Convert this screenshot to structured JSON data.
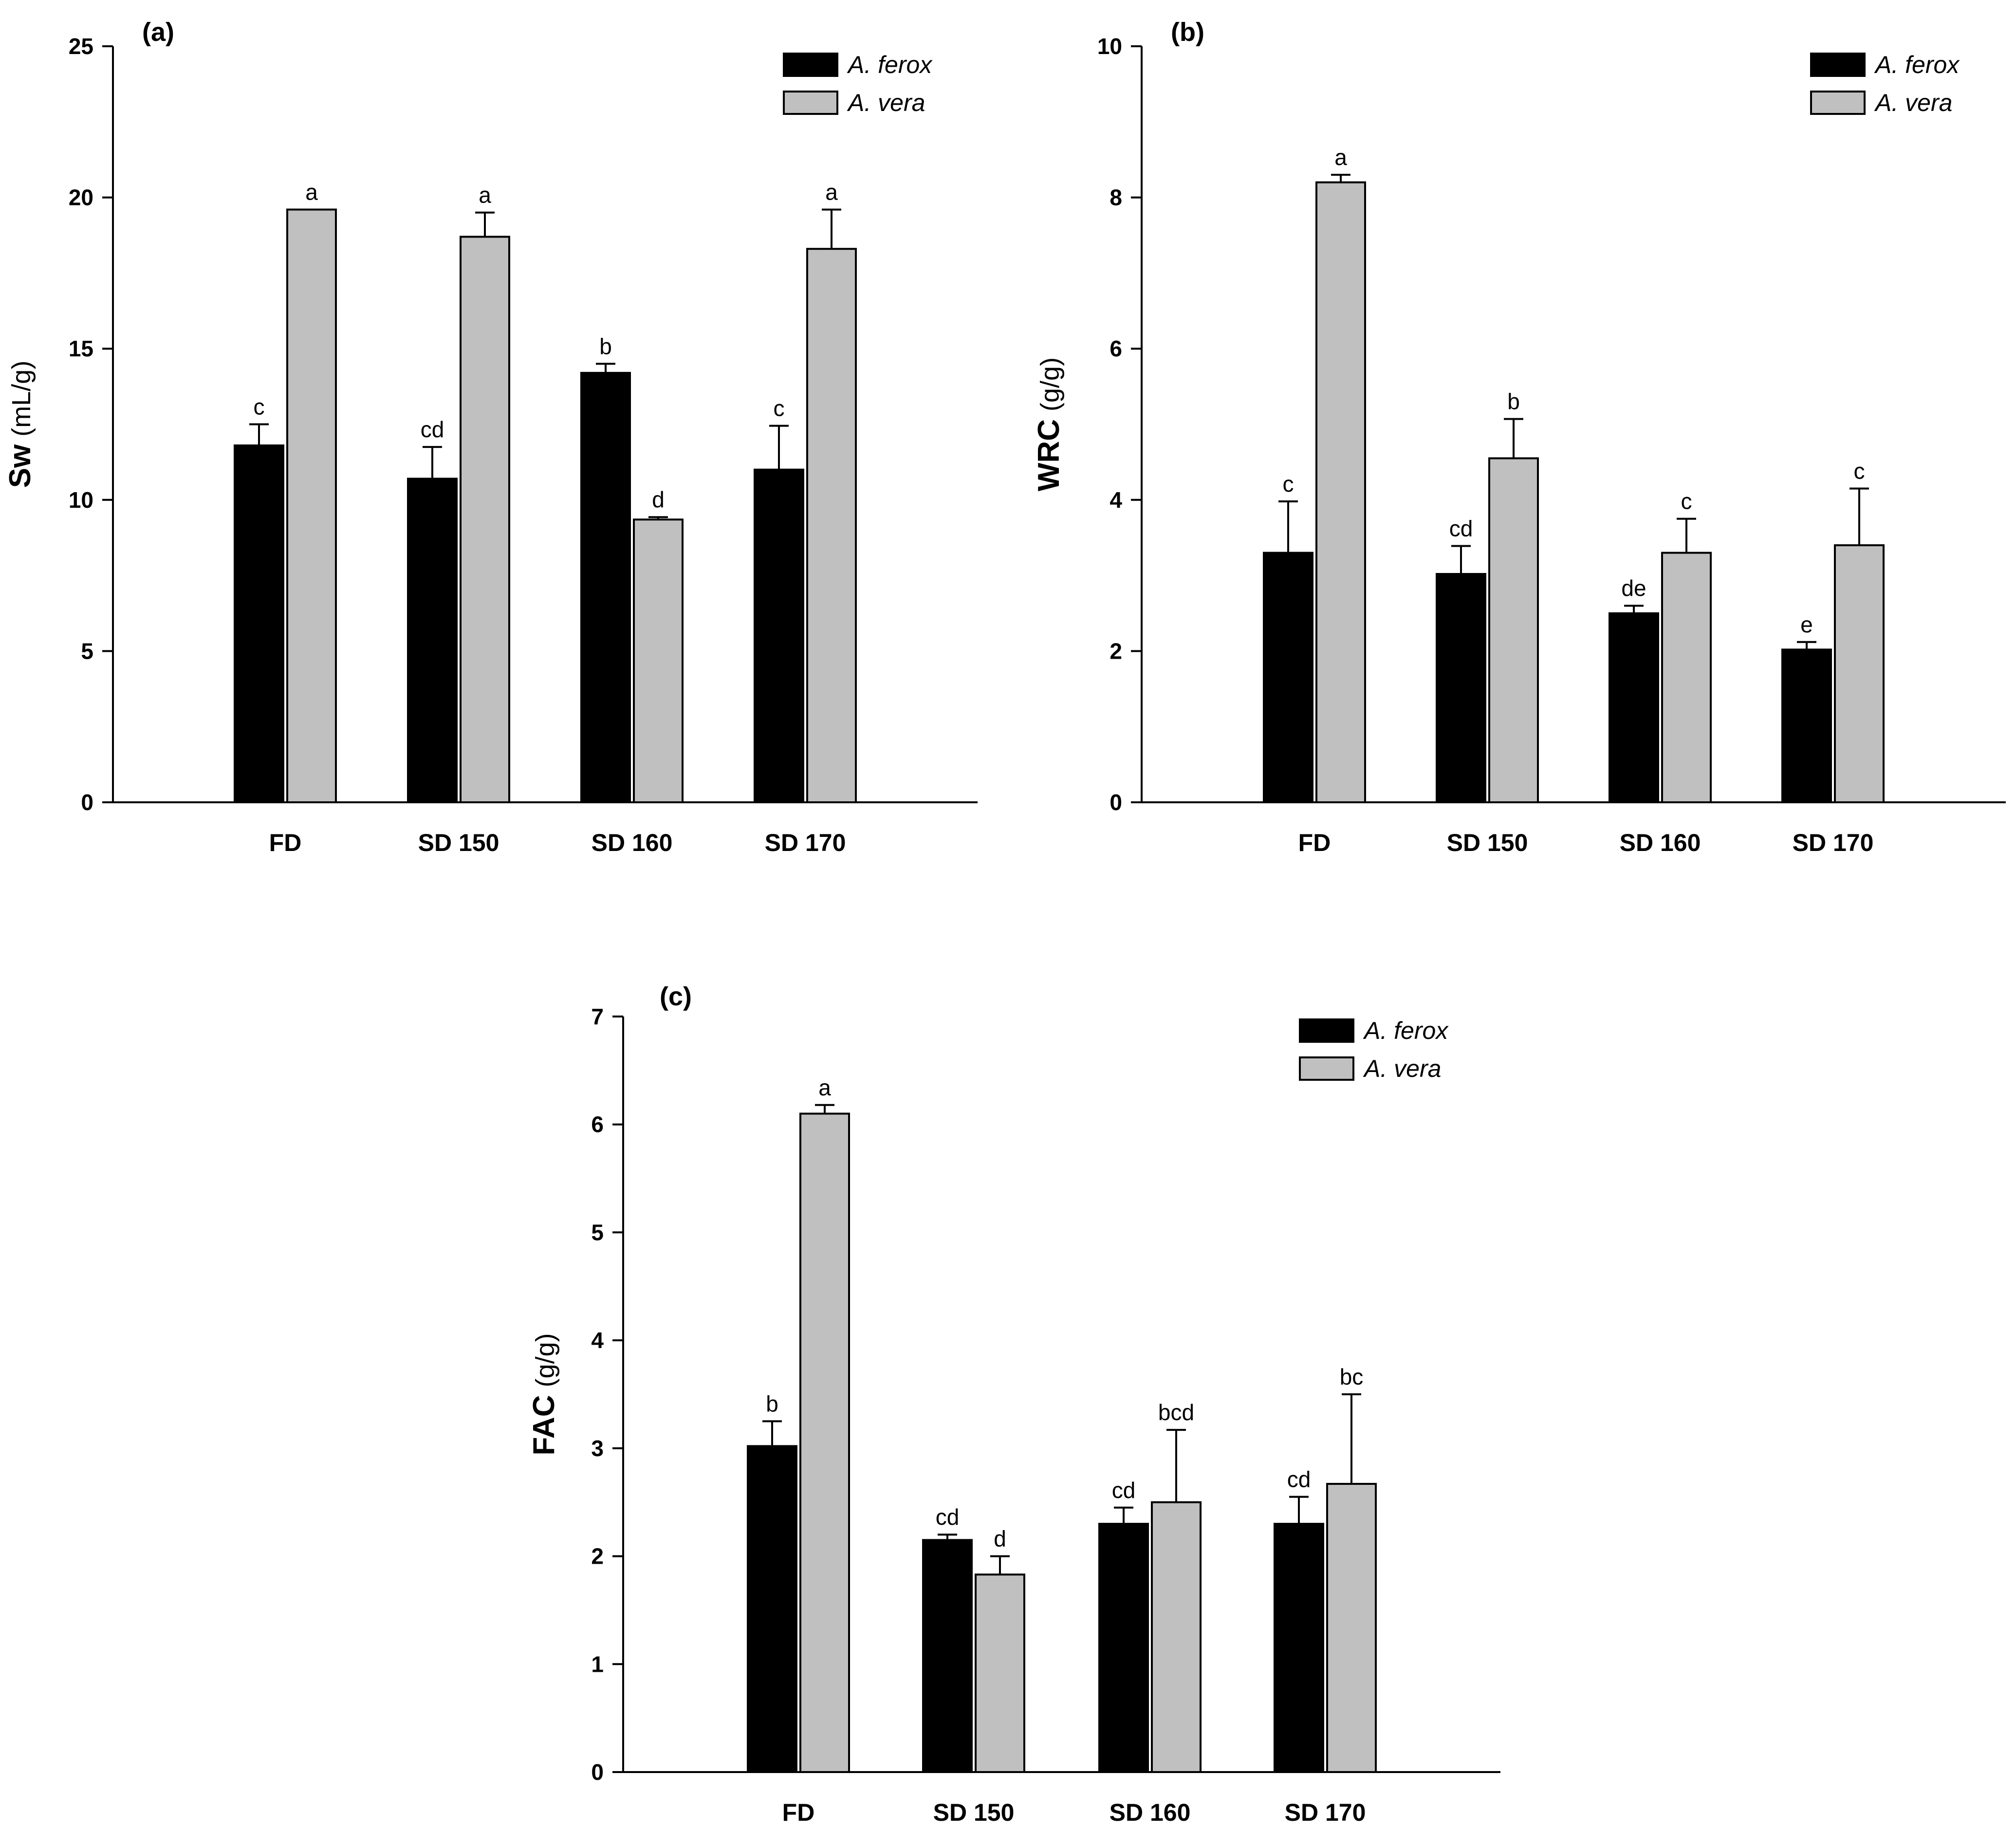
{
  "series_names": [
    "A. ferox",
    "A. vera"
  ],
  "colors": {
    "A. ferox": "#000000",
    "A. vera": "#c0c0c0",
    "axis": "#000000"
  },
  "chart_data": [
    {
      "type": "bar",
      "panel_label": "(a)",
      "ylabel_main": "Sw",
      "ylabel_unit": "(mL/g)",
      "xlabel": "",
      "categories": [
        "FD",
        "SD 150",
        "SD 160",
        "SD 170"
      ],
      "ylim": [
        0,
        25
      ],
      "yticks": [
        0,
        5,
        10,
        15,
        20,
        25
      ],
      "legend_position": "top-right",
      "grid": false,
      "series": [
        {
          "name": "A. ferox",
          "values": [
            11.8,
            10.7,
            14.2,
            11.0
          ],
          "errors": [
            0.7,
            1.05,
            0.3,
            1.45
          ],
          "letters": [
            "c",
            "cd",
            "b",
            "c"
          ]
        },
        {
          "name": "A. vera",
          "values": [
            19.6,
            18.7,
            9.35,
            18.3
          ],
          "errors": [
            0.0,
            0.8,
            0.08,
            1.3
          ],
          "letters": [
            "a",
            "a",
            "d",
            "a"
          ]
        }
      ]
    },
    {
      "type": "bar",
      "panel_label": "(b)",
      "ylabel_main": "WRC",
      "ylabel_unit": "(g/g)",
      "xlabel": "",
      "categories": [
        "FD",
        "SD 150",
        "SD 160",
        "SD 170"
      ],
      "ylim": [
        0,
        10
      ],
      "yticks": [
        0,
        2,
        4,
        6,
        8,
        10
      ],
      "legend_position": "top-right",
      "grid": false,
      "series": [
        {
          "name": "A. ferox",
          "values": [
            3.3,
            3.02,
            2.5,
            2.02
          ],
          "errors": [
            0.68,
            0.37,
            0.1,
            0.1
          ],
          "letters": [
            "c",
            "cd",
            "de",
            "e"
          ]
        },
        {
          "name": "A. vera",
          "values": [
            8.2,
            4.55,
            3.3,
            3.4
          ],
          "errors": [
            0.1,
            0.52,
            0.45,
            0.75
          ],
          "letters": [
            "a",
            "b",
            "c",
            "c"
          ]
        }
      ]
    },
    {
      "type": "bar",
      "panel_label": "(c)",
      "ylabel_main": "FAC",
      "ylabel_unit": "(g/g)",
      "xlabel": "",
      "categories": [
        "FD",
        "SD 150",
        "SD 160",
        "SD 170"
      ],
      "ylim": [
        0,
        7
      ],
      "yticks": [
        0,
        1,
        2,
        3,
        4,
        5,
        6,
        7
      ],
      "legend_position": "top-right",
      "grid": false,
      "series": [
        {
          "name": "A. ferox",
          "values": [
            3.02,
            2.15,
            2.3,
            2.3
          ],
          "errors": [
            0.23,
            0.05,
            0.15,
            0.25
          ],
          "letters": [
            "b",
            "cd",
            "cd",
            "cd"
          ]
        },
        {
          "name": "A. vera",
          "values": [
            6.1,
            1.83,
            2.5,
            2.67
          ],
          "errors": [
            0.08,
            0.17,
            0.67,
            0.83
          ],
          "letters": [
            "a",
            "d",
            "bcd",
            "bc"
          ]
        }
      ]
    }
  ]
}
